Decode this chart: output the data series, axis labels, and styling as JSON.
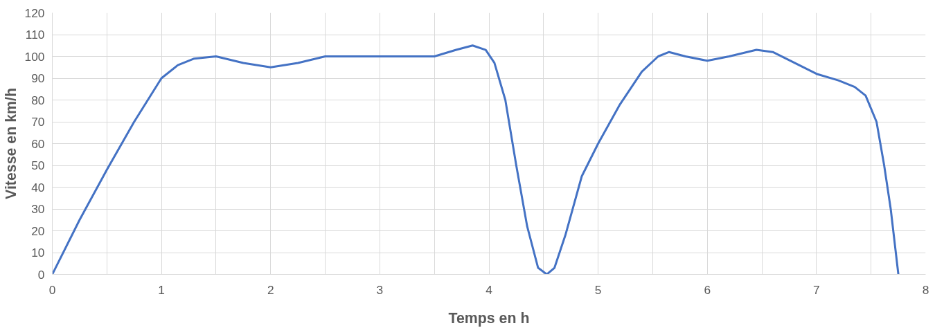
{
  "chart_data": {
    "type": "line",
    "xlabel": "Temps en h",
    "ylabel": "Vitesse en km/h",
    "x": [
      0,
      0.25,
      0.5,
      0.75,
      1,
      1.15,
      1.3,
      1.5,
      1.75,
      2,
      2.25,
      2.5,
      2.75,
      3,
      3.25,
      3.5,
      3.7,
      3.85,
      3.97,
      4.05,
      4.15,
      4.25,
      4.35,
      4.45,
      4.53,
      4.6,
      4.7,
      4.85,
      5,
      5.2,
      5.4,
      5.55,
      5.65,
      5.8,
      6,
      6.2,
      6.45,
      6.6,
      6.8,
      7,
      7.2,
      7.35,
      7.45,
      7.55,
      7.62,
      7.68,
      7.75
    ],
    "series": [
      {
        "color": "#4472c4",
        "values": [
          0,
          25,
          48,
          70,
          90,
          96,
          99,
          100,
          97,
          95,
          97,
          100,
          100,
          100,
          100,
          100,
          103,
          105,
          103,
          97,
          80,
          50,
          22,
          3,
          0,
          3,
          18,
          45,
          60,
          78,
          93,
          100,
          102,
          100,
          98,
          100,
          103,
          102,
          97,
          92,
          89,
          86,
          82,
          70,
          50,
          30,
          0
        ]
      }
    ],
    "xlim": [
      0,
      8
    ],
    "ylim": [
      0,
      120
    ],
    "xticks": [
      0,
      {
        "value": 0.5,
        "label": null
      },
      1,
      {
        "value": 1.5,
        "label": null
      },
      2,
      {
        "value": 2.5,
        "label": null
      },
      3,
      {
        "value": 3.5,
        "label": null
      },
      4,
      {
        "value": 4.5,
        "label": null
      },
      5,
      {
        "value": 5.5,
        "label": null
      },
      6,
      {
        "value": 6.5,
        "label": null
      },
      7,
      {
        "value": 7.5,
        "label": null
      },
      8
    ],
    "yticks": [
      0,
      10,
      20,
      30,
      40,
      50,
      60,
      70,
      80,
      90,
      100,
      110,
      120
    ],
    "grid": true,
    "marker": "none",
    "line_style": "solid"
  }
}
